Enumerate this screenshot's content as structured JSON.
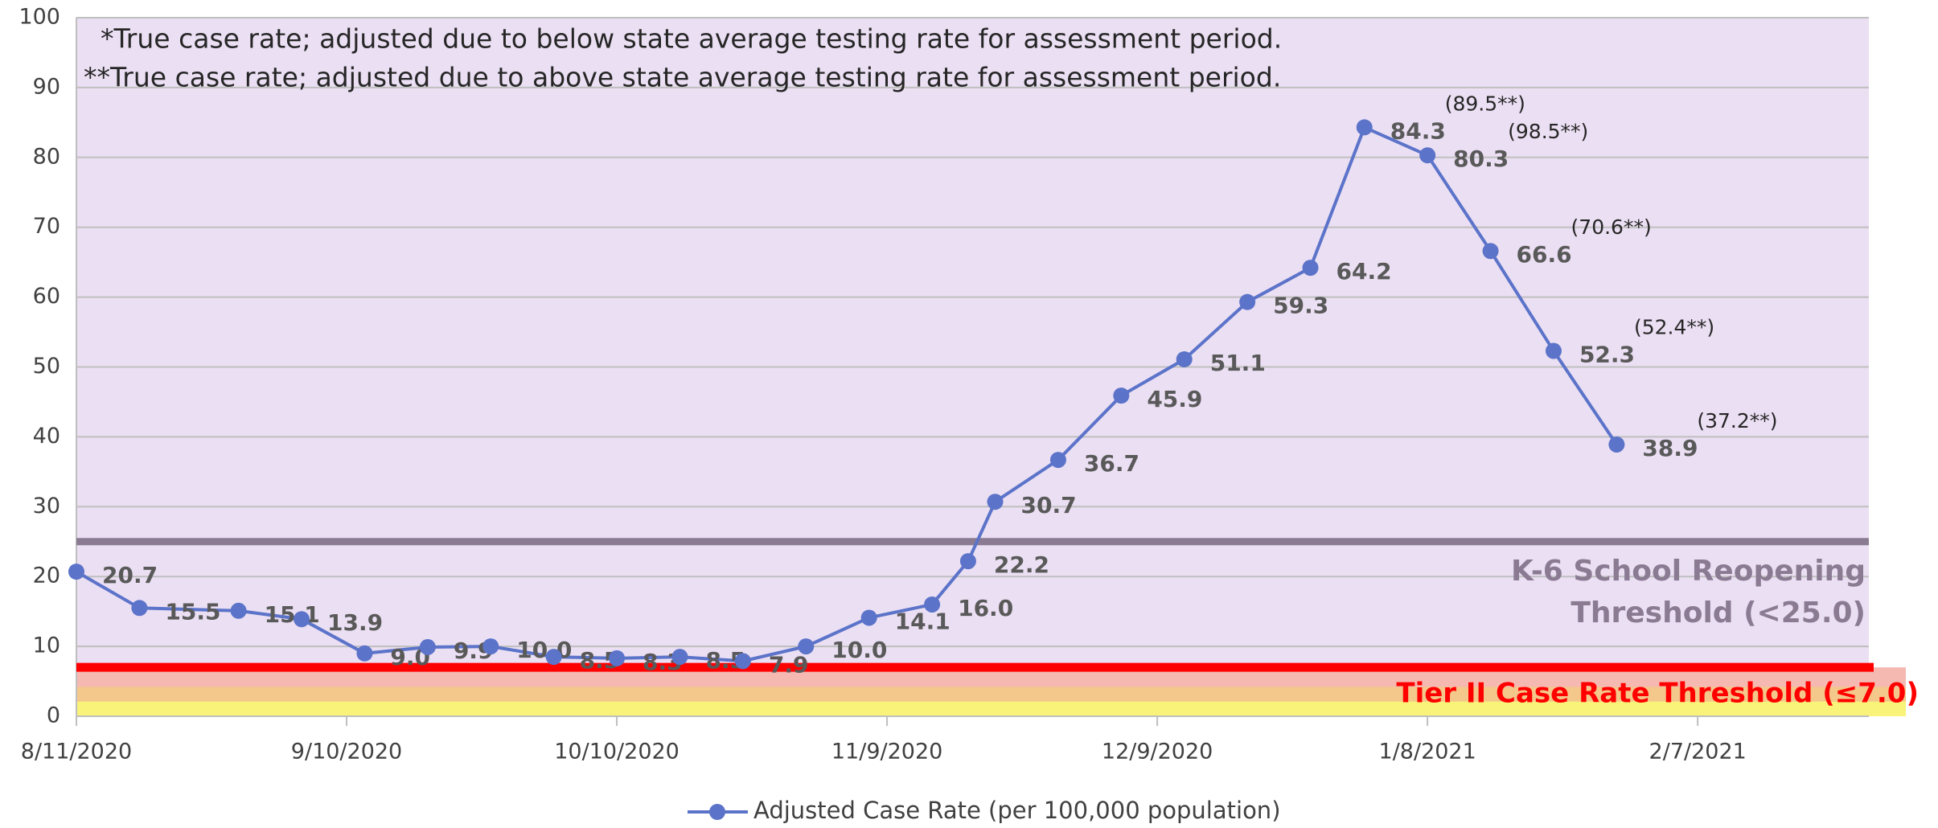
{
  "chart_data": {
    "type": "line",
    "notes": [
      "*True case rate; adjusted due to below state average testing rate for assessment period.",
      "**True case rate; adjusted due to above state average testing rate for assessment period."
    ],
    "x": [
      "8/11/2020",
      "8/18/2020",
      "8/29/2020",
      "9/5/2020",
      "9/12/2020",
      "9/19/2020",
      "9/26/2020",
      "10/3/2020",
      "10/10/2020",
      "10/17/2020",
      "10/24/2020",
      "10/31/2020",
      "11/7/2020",
      "11/14/2020",
      "11/18/2020",
      "11/21/2020",
      "11/28/2020",
      "12/5/2020",
      "12/12/2020",
      "12/19/2020",
      "12/26/2020",
      "1/1/2021",
      "1/8/2021",
      "1/15/2021",
      "1/22/2021",
      "1/29/2021"
    ],
    "series": [
      {
        "name": "Adjusted Case Rate (per 100,000 population)",
        "color": "#5b73c9",
        "values": [
          20.7,
          15.5,
          15.1,
          13.9,
          9.0,
          9.9,
          10.0,
          8.5,
          8.3,
          8.5,
          7.9,
          10.0,
          14.1,
          16.0,
          22.2,
          30.7,
          36.7,
          45.9,
          51.1,
          59.3,
          64.2,
          84.3,
          80.3,
          66.6,
          52.3,
          38.9
        ],
        "value_labels": [
          "20.7",
          "15.5",
          "15.1",
          "13.9",
          "9.0",
          "9.9",
          "10.0",
          "8.5",
          "8.3",
          "8.5",
          "7.9",
          "10.0",
          "14.1",
          "16.0",
          "22.2",
          "30.7",
          "36.7",
          "45.9",
          "51.1",
          "59.3",
          "64.2",
          "84.3",
          "80.3",
          "66.6",
          "52.3",
          "38.9"
        ]
      }
    ],
    "annotations": [
      {
        "x": "1/1/2021",
        "text": "(89.5**)"
      },
      {
        "x": "1/8/2021",
        "text": "(98.5**)"
      },
      {
        "x": "1/15/2021",
        "text": "(70.6**)"
      },
      {
        "x": "1/22/2021",
        "text": "(52.4**)"
      },
      {
        "x": "1/29/2021",
        "text": "(37.2**)"
      }
    ],
    "thresholds": [
      {
        "value": 25,
        "label": [
          "K-6 School Reopening",
          "Threshold (<25.0)"
        ],
        "color": "#8a7b92"
      },
      {
        "value": 7,
        "label": [
          "Tier II Case Rate Threshold (≤7.0)"
        ],
        "color": "#ff0000"
      }
    ],
    "xlim": [
      "8/11/2020",
      "2/26/2021"
    ],
    "xticks": [
      "8/11/2020",
      "9/10/2020",
      "10/10/2020",
      "11/9/2020",
      "12/9/2020",
      "1/8/2021",
      "2/7/2021"
    ],
    "ylim": [
      0,
      100
    ],
    "yticks": [
      0,
      10,
      20,
      30,
      40,
      50,
      60,
      70,
      80,
      90,
      100
    ],
    "grid": true,
    "legend": "bottom"
  }
}
